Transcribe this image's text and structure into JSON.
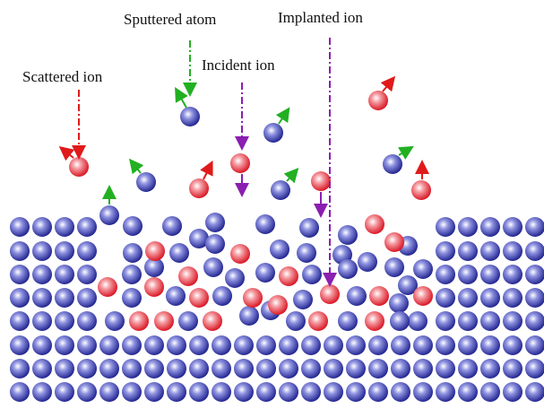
{
  "labels": {
    "sputtered_atom": "Sputtered atom",
    "implanted_ion": "Implanted ion",
    "incident_ion": "Incident ion",
    "scattered_ion": "Scattered ion"
  }
}
